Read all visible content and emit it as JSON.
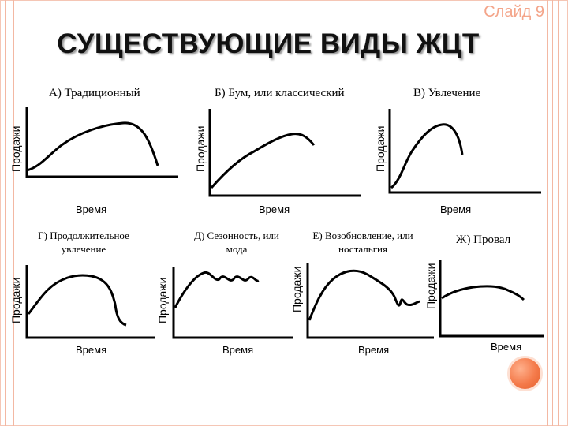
{
  "slide_number": "Слайд 9",
  "title": "СУЩЕСТВУЮЩИЕ ВИДЫ ЖЦТ",
  "colors": {
    "accent": "#f4a58a",
    "orb": "#f47a4a",
    "rails": "#f3b8a3"
  },
  "panels": [
    {
      "label": "А) Традиционный",
      "ylabel": "Продажи",
      "xlabel": "Время"
    },
    {
      "label": "Б) Бум, или классический",
      "ylabel": "Продажи",
      "xlabel": "Время"
    },
    {
      "label": "В) Увлечение",
      "ylabel": "Продажи",
      "xlabel": "Время"
    },
    {
      "label": "Г) Продолжительное увлечение",
      "ylabel": "Продажи",
      "xlabel": "Время"
    },
    {
      "label": "Д) Сезонность, или мода",
      "ylabel": "Продажи",
      "xlabel": "Время"
    },
    {
      "label": "Е) Возобновление, или ностальгия",
      "ylabel": "Продажи",
      "xlabel": "Время"
    },
    {
      "label": "Ж) Провал",
      "ylabel": "Продажи",
      "xlabel": "Время"
    }
  ]
}
